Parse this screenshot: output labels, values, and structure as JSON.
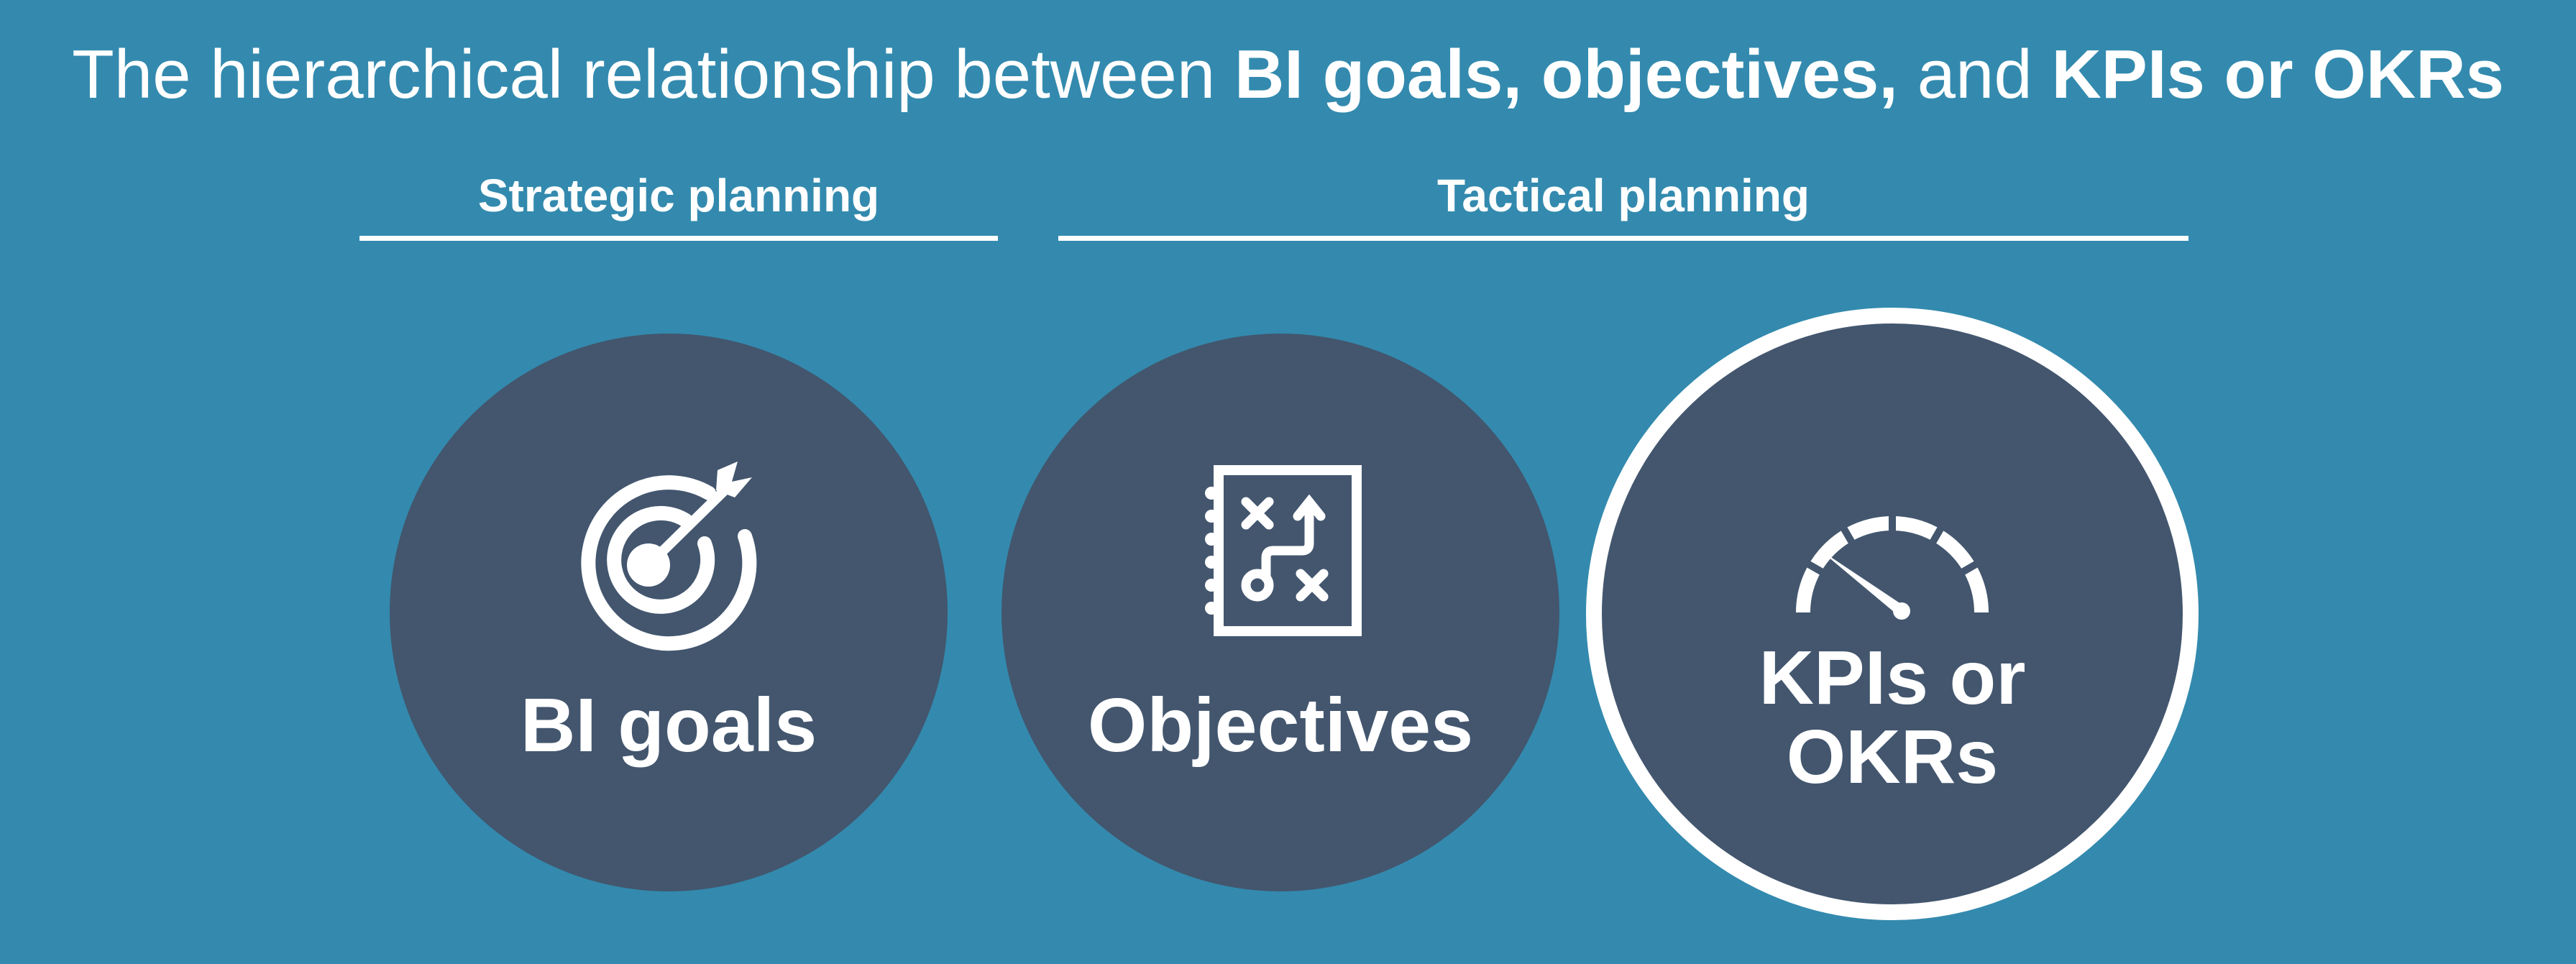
{
  "title": {
    "part1": "The hierarchical relationship between ",
    "part2": "BI goals, objectives,",
    "part3": " and ",
    "part4": "KPIs or OKRs"
  },
  "sections": [
    {
      "label": "Strategic planning"
    },
    {
      "label": "Tactical planning"
    }
  ],
  "nodes": [
    {
      "label": "BI goals",
      "icon": "target-arrow-icon"
    },
    {
      "label": "Objectives",
      "icon": "strategy-notebook-icon"
    },
    {
      "label_line1": "KPIs or",
      "label_line2": "OKRs",
      "icon": "gauge-icon"
    }
  ],
  "colors": {
    "background": "#338aae",
    "circle": "#43566e",
    "foreground": "#ffffff"
  }
}
